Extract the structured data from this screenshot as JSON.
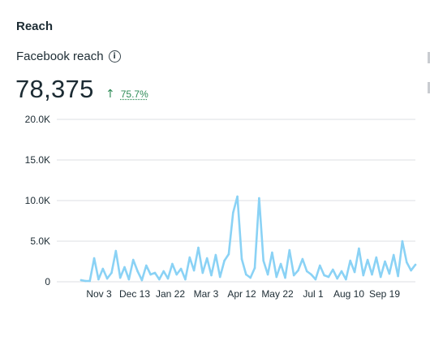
{
  "section": {
    "title": "Reach"
  },
  "metric": {
    "label": "Facebook reach",
    "info_icon": "info-icon",
    "value": "78,375",
    "delta_icon": "arrow-up-icon",
    "delta": "75.7%",
    "delta_color": "#2e8b57"
  },
  "colors": {
    "line": "#8ad2f5",
    "grid": "#dcdfe3",
    "text": "#1c2b33"
  },
  "chart_data": {
    "type": "line",
    "x": [
      "Oct 22",
      "Oct 27",
      "Nov 1",
      "Nov 3",
      "Nov 8",
      "Nov 13",
      "Nov 18",
      "Nov 23",
      "Nov 28",
      "Dec 3",
      "Dec 8",
      "Dec 13",
      "Dec 18",
      "Dec 23",
      "Dec 28",
      "Jan 2",
      "Jan 7",
      "Jan 12",
      "Jan 17",
      "Jan 22",
      "Jan 27",
      "Feb 1",
      "Feb 6",
      "Feb 11",
      "Feb 16",
      "Feb 21",
      "Feb 26",
      "Mar 3",
      "Mar 8",
      "Mar 13",
      "Mar 18",
      "Mar 23",
      "Mar 28",
      "Apr 2",
      "Apr 5",
      "Apr 7",
      "Apr 10",
      "Apr 12",
      "Apr 15",
      "Apr 18",
      "Apr 21",
      "Apr 24",
      "Apr 27",
      "May 2",
      "May 7",
      "May 12",
      "May 17",
      "May 22",
      "May 27",
      "Jun 1",
      "Jun 6",
      "Jun 11",
      "Jun 16",
      "Jun 21",
      "Jun 26",
      "Jul 1",
      "Jul 6",
      "Jul 11",
      "Jul 16",
      "Jul 21",
      "Jul 26",
      "Jul 31",
      "Aug 5",
      "Aug 10",
      "Aug 15",
      "Aug 20",
      "Aug 25",
      "Aug 30",
      "Sep 4",
      "Sep 9",
      "Sep 14",
      "Sep 19",
      "Sep 24",
      "Sep 29",
      "Oct 4",
      "Oct 9",
      "Oct 14",
      "Oct 16"
    ],
    "y": [
      200,
      100,
      100,
      2900,
      300,
      1600,
      400,
      1100,
      3800,
      500,
      1800,
      300,
      2700,
      1300,
      200,
      2000,
      900,
      1100,
      300,
      1300,
      400,
      2200,
      900,
      1600,
      300,
      3000,
      1400,
      4200,
      1100,
      2900,
      800,
      3300,
      600,
      2600,
      3400,
      8500,
      10500,
      2800,
      900,
      500,
      1700,
      10300,
      2600,
      900,
      3600,
      600,
      2200,
      500,
      3900,
      800,
      1400,
      2800,
      1300,
      900,
      300,
      2000,
      800,
      600,
      1500,
      400,
      1300,
      300,
      2600,
      1200,
      4100,
      800,
      2700,
      900,
      3000,
      600,
      2500,
      1000,
      3300,
      700,
      5000,
      2400,
      1400,
      2100
    ],
    "series": [
      {
        "name": "",
        "color": "#8ad2f5"
      }
    ],
    "ylim": [
      0,
      20000
    ],
    "yticks": [
      0,
      5000,
      10000,
      15000,
      20000
    ],
    "ytick_labels": [
      "0",
      "5.0K",
      "10.0K",
      "15.0K",
      "20.0K"
    ],
    "xtick_labels": [
      "Nov 3",
      "Dec 13",
      "Jan 22",
      "Mar 3",
      "Apr 12",
      "May 22",
      "Jul 1",
      "Aug 10",
      "Sep 19"
    ],
    "grid": true,
    "title": "",
    "xlabel": "",
    "ylabel": ""
  }
}
